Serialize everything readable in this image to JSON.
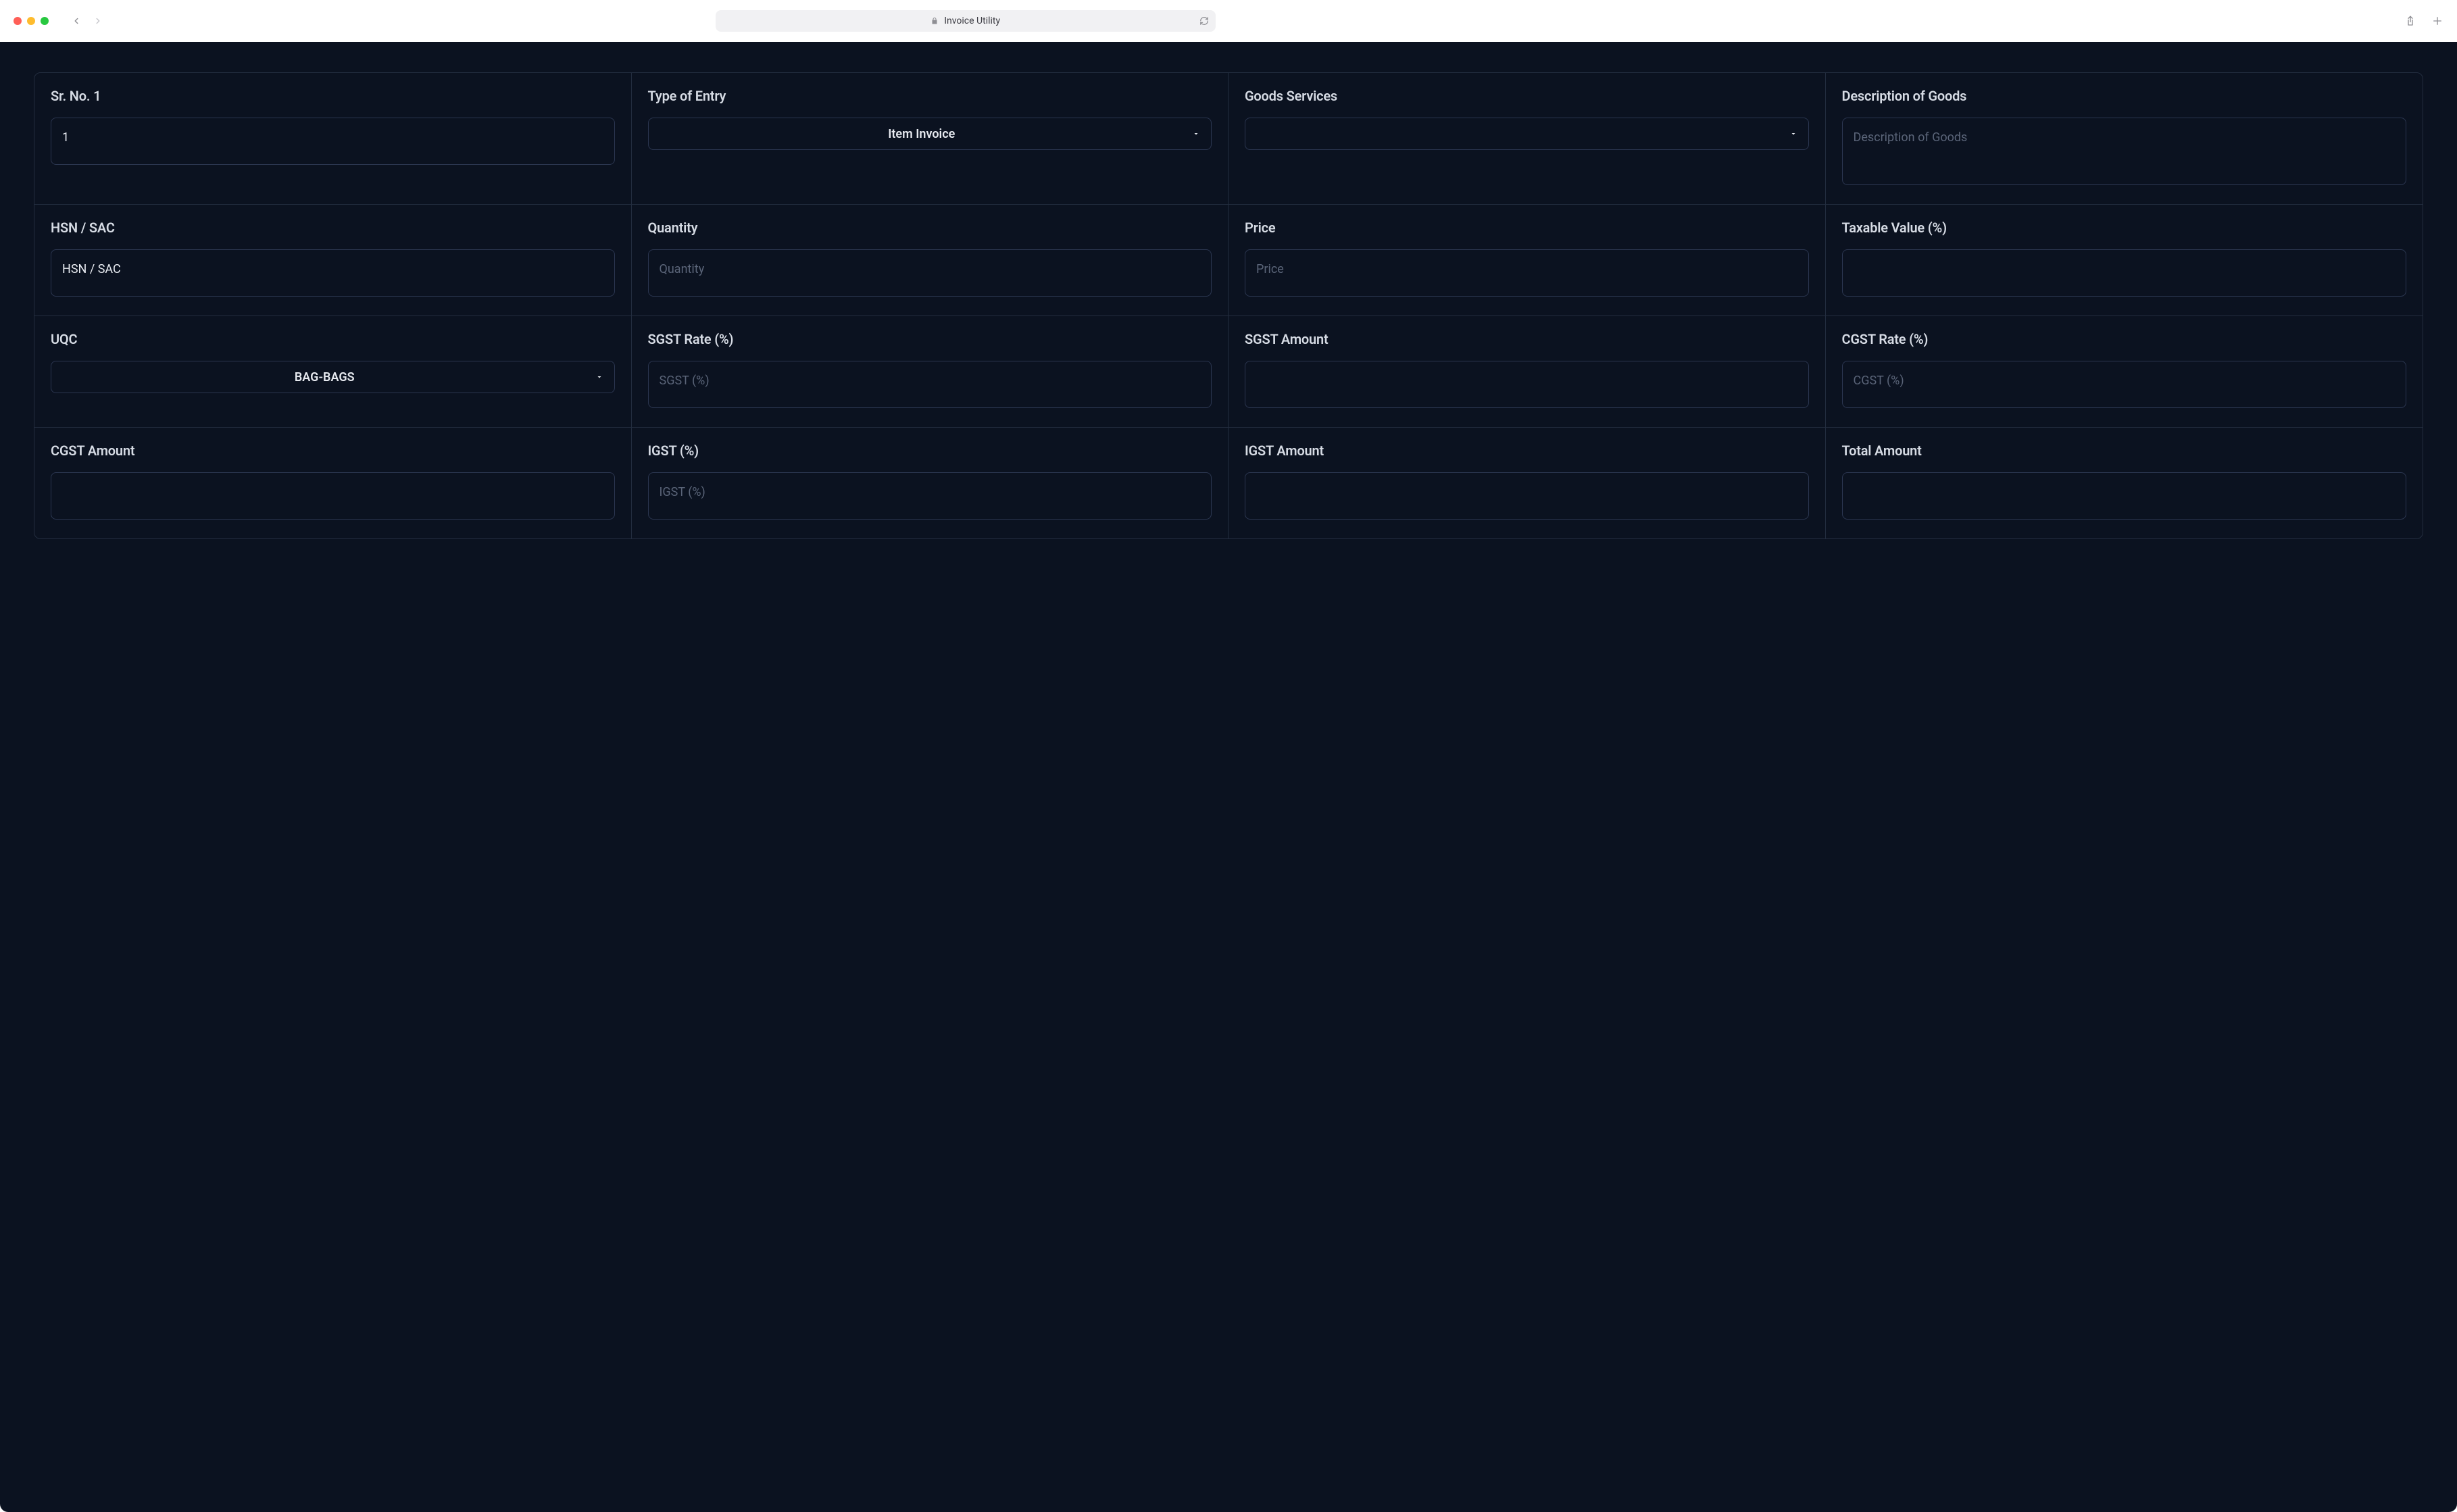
{
  "browser": {
    "title": "Invoice Utility"
  },
  "colors": {
    "app_bg": "#0b1220",
    "border": "#232d3f",
    "control_border": "#2b3650",
    "label_text": "#d6dbe4",
    "value_text": "#e6e9ef",
    "placeholder_text": "#5a6478"
  },
  "form": {
    "rows": [
      [
        {
          "key": "sr_no",
          "label": "Sr. No. 1",
          "type": "textarea",
          "value": "1",
          "placeholder": "",
          "tall": false
        },
        {
          "key": "entry_type",
          "label": "Type of Entry",
          "type": "dropdown",
          "value": "Item Invoice",
          "placeholder": ""
        },
        {
          "key": "goods_svc",
          "label": "Goods Services",
          "type": "dropdown",
          "value": "",
          "placeholder": ""
        },
        {
          "key": "desc_goods",
          "label": "Description of Goods",
          "type": "textarea",
          "value": "",
          "placeholder": "Description of Goods",
          "tall": true
        }
      ],
      [
        {
          "key": "hsn_sac",
          "label": "HSN / SAC",
          "type": "textarea",
          "value": "HSN / SAC",
          "placeholder": "",
          "tall": false
        },
        {
          "key": "quantity",
          "label": "Quantity",
          "type": "textarea",
          "value": "",
          "placeholder": "Quantity",
          "tall": false
        },
        {
          "key": "price",
          "label": "Price",
          "type": "textarea",
          "value": "",
          "placeholder": "Price",
          "tall": false
        },
        {
          "key": "taxable_val",
          "label": "Taxable Value (%)",
          "type": "textarea",
          "value": "",
          "placeholder": "",
          "tall": false
        }
      ],
      [
        {
          "key": "uqc",
          "label": "UQC",
          "type": "dropdown",
          "value": "BAG-BAGS",
          "placeholder": ""
        },
        {
          "key": "sgst_rate",
          "label": "SGST Rate (%)",
          "type": "textarea",
          "value": "",
          "placeholder": "SGST (%)",
          "tall": false
        },
        {
          "key": "sgst_amt",
          "label": "SGST Amount",
          "type": "textarea",
          "value": "",
          "placeholder": "",
          "tall": false
        },
        {
          "key": "cgst_rate",
          "label": "CGST Rate (%)",
          "type": "textarea",
          "value": "",
          "placeholder": "CGST (%)",
          "tall": false
        }
      ],
      [
        {
          "key": "cgst_amt",
          "label": "CGST Amount",
          "type": "textarea",
          "value": "",
          "placeholder": "",
          "tall": false
        },
        {
          "key": "igst_rate",
          "label": "IGST (%)",
          "type": "textarea",
          "value": "",
          "placeholder": "IGST (%)",
          "tall": false
        },
        {
          "key": "igst_amt",
          "label": "IGST Amount",
          "type": "textarea",
          "value": "",
          "placeholder": "",
          "tall": false
        },
        {
          "key": "total_amt",
          "label": "Total Amount",
          "type": "textarea",
          "value": "",
          "placeholder": "",
          "tall": false
        }
      ]
    ]
  }
}
